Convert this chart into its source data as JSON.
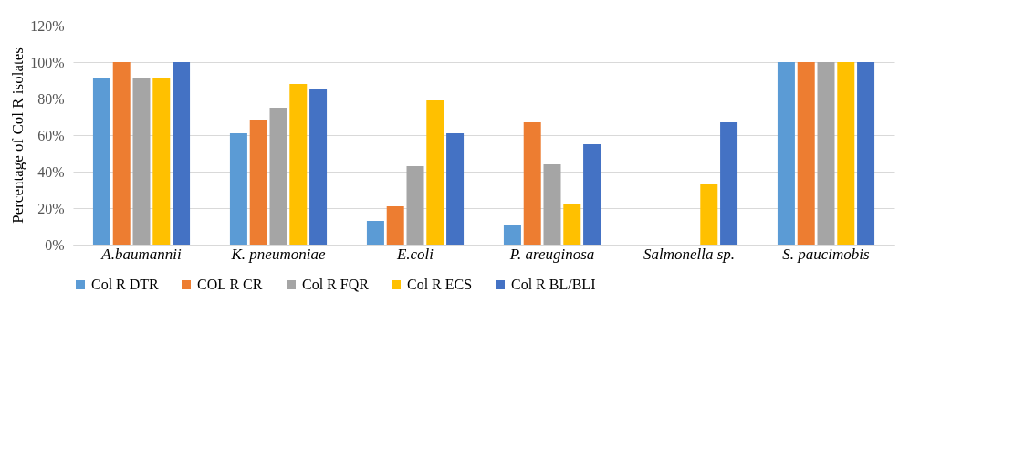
{
  "chart_data": {
    "type": "bar",
    "ylabel": "Percentage of Col R isolates",
    "categories": [
      "A.baumannii",
      "K. pneumoniae",
      "E.coli",
      "P. areuginosa",
      "Salmonella sp.",
      "S. paucimobis"
    ],
    "series": [
      {
        "name": "Col R DTR",
        "color": "#5b9bd5",
        "values": [
          91,
          61,
          13,
          11,
          0,
          100
        ]
      },
      {
        "name": "COL R CR",
        "color": "#ed7d31",
        "values": [
          100,
          68,
          21,
          67,
          0,
          100
        ]
      },
      {
        "name": "Col R FQR",
        "color": "#a5a5a5",
        "values": [
          91,
          75,
          43,
          44,
          0,
          100
        ]
      },
      {
        "name": "Col R ECS",
        "color": "#ffc000",
        "values": [
          91,
          88,
          79,
          22,
          33,
          100
        ]
      },
      {
        "name": "Col R BL/BLI",
        "color": "#4472c4",
        "values": [
          100,
          85,
          61,
          55,
          67,
          100
        ]
      }
    ],
    "ylim": [
      0,
      120
    ],
    "yticks": [
      {
        "value": 0,
        "label": "0%"
      },
      {
        "value": 20,
        "label": "20%"
      },
      {
        "value": 40,
        "label": "40%"
      },
      {
        "value": 60,
        "label": "60%"
      },
      {
        "value": 80,
        "label": "80%"
      },
      {
        "value": 100,
        "label": "100%"
      },
      {
        "value": 120,
        "label": "120%"
      }
    ],
    "grid": "y",
    "legend": "bottom"
  }
}
